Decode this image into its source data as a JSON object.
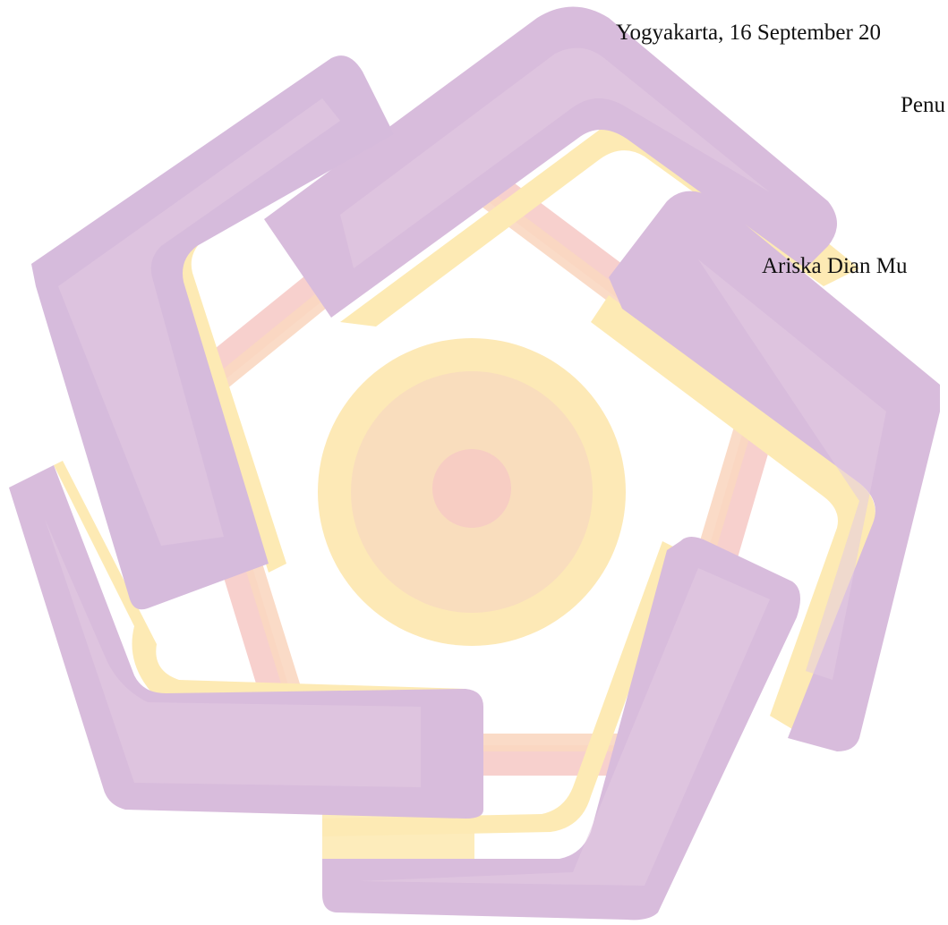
{
  "signature_block": {
    "place_date": "Yogyakarta, 16 September 20",
    "role": "Penu",
    "name": "Ariska Dian Mu"
  },
  "watermark": {
    "icon": "pentagon-swirl-logo-icon",
    "colors": {
      "lavender": "#d8bcdc",
      "lavender_dark": "#d2b9dc",
      "yellow": "#fdeab4",
      "peach": "#f9d7c1",
      "salmon": "#f6c8c4",
      "circle_outer": "#fde9b6",
      "circle_mid": "#f9ddbd",
      "circle_core": "#f7cdc3"
    }
  }
}
